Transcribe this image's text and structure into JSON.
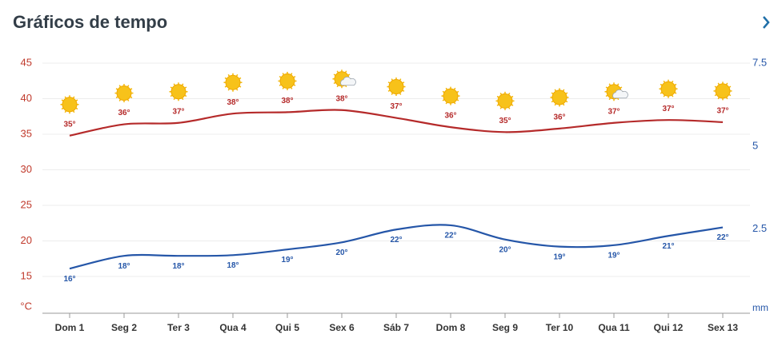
{
  "chart_data": {
    "type": "line",
    "title": "Gráficos de tempo",
    "categories": [
      "Dom 1",
      "Seg 2",
      "Ter 3",
      "Qua 4",
      "Qui 5",
      "Sex 6",
      "Sáb 7",
      "Dom 8",
      "Seg 9",
      "Ter 10",
      "Qua 11",
      "Qui 12",
      "Sex 13"
    ],
    "series": [
      {
        "color": "#b52a2a",
        "values": [
          34.8,
          36.4,
          36.6,
          37.9,
          38.1,
          38.4,
          37.3,
          36.0,
          35.3,
          35.8,
          36.6,
          37.0,
          36.7
        ],
        "value_labels": [
          "35°",
          "36°",
          "37°",
          "38°",
          "38°",
          "38°",
          "37°",
          "36°",
          "35°",
          "36°",
          "37°",
          "37°",
          "37°"
        ]
      },
      {
        "color": "#2556a8",
        "values": [
          16.1,
          17.9,
          17.9,
          18.0,
          18.8,
          19.8,
          21.6,
          22.2,
          20.2,
          19.2,
          19.4,
          20.7,
          21.9
        ],
        "value_labels": [
          "16°",
          "18°",
          "18°",
          "18°",
          "19°",
          "20°",
          "22°",
          "22°",
          "20°",
          "19°",
          "19°",
          "21°",
          "22°"
        ]
      }
    ],
    "icons": [
      "sun",
      "sun",
      "sun",
      "sun",
      "sun",
      "sun-cloud",
      "sun",
      "sun",
      "sun",
      "sun",
      "sun-cloud",
      "sun",
      "sun"
    ],
    "ylabel": "°C",
    "ylim": [
      10,
      45
    ],
    "yticks": [
      15,
      20,
      25,
      30,
      35,
      40,
      45
    ],
    "y2label": "mm",
    "y2lim": [
      0,
      7.5
    ],
    "y2ticks": [
      2.5,
      5,
      7.5
    ],
    "grid": true
  }
}
